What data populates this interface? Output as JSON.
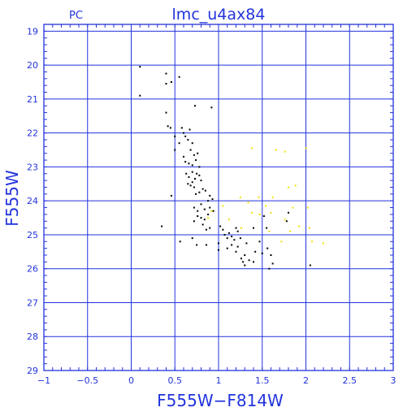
{
  "chart_data": {
    "type": "scatter",
    "corner_label": "PC",
    "title": "lmc_u4ax84",
    "xlabel": "F555W−F814W",
    "ylabel": "F555W",
    "xlim": [
      -1,
      3
    ],
    "ylim": [
      29,
      18.8
    ],
    "y_inverted": true,
    "grid": true,
    "x_ticks": [
      -1,
      -0.5,
      0,
      0.5,
      1,
      1.5,
      2,
      2.5,
      3
    ],
    "x_tick_labels": [
      "−1",
      "−0.5",
      "0",
      "0.5",
      "1",
      "1.5",
      "2",
      "2.5",
      "3"
    ],
    "y_ticks": [
      19,
      20,
      21,
      22,
      23,
      24,
      25,
      26,
      27,
      28,
      29
    ],
    "y_tick_labels": [
      "19",
      "20",
      "21",
      "22",
      "23",
      "24",
      "25",
      "26",
      "27",
      "28",
      "29"
    ],
    "axis_color": "#2233dd",
    "series": [
      {
        "color": "#000000",
        "points": [
          [
            0.1,
            20.05
          ],
          [
            0.1,
            20.9
          ],
          [
            0.4,
            20.25
          ],
          [
            0.4,
            20.55
          ],
          [
            0.46,
            20.5
          ],
          [
            0.55,
            20.35
          ],
          [
            0.4,
            21.4
          ],
          [
            0.42,
            21.8
          ],
          [
            0.45,
            21.85
          ],
          [
            0.73,
            21.2
          ],
          [
            0.92,
            21.25
          ],
          [
            0.5,
            22.1
          ],
          [
            0.55,
            22.3
          ],
          [
            0.5,
            22.5
          ],
          [
            0.58,
            21.85
          ],
          [
            0.6,
            22.0
          ],
          [
            0.62,
            22.1
          ],
          [
            0.65,
            22.2
          ],
          [
            0.67,
            21.9
          ],
          [
            0.7,
            22.3
          ],
          [
            0.68,
            22.5
          ],
          [
            0.72,
            22.65
          ],
          [
            0.6,
            22.7
          ],
          [
            0.62,
            22.85
          ],
          [
            0.66,
            22.9
          ],
          [
            0.7,
            22.95
          ],
          [
            0.74,
            22.8
          ],
          [
            0.76,
            22.6
          ],
          [
            0.78,
            23.0
          ],
          [
            0.63,
            23.2
          ],
          [
            0.66,
            23.3
          ],
          [
            0.7,
            23.15
          ],
          [
            0.73,
            23.35
          ],
          [
            0.75,
            23.2
          ],
          [
            0.78,
            23.25
          ],
          [
            0.65,
            23.5
          ],
          [
            0.68,
            23.55
          ],
          [
            0.7,
            23.45
          ],
          [
            0.72,
            23.6
          ],
          [
            0.8,
            23.4
          ],
          [
            0.82,
            23.65
          ],
          [
            0.74,
            23.8
          ],
          [
            0.78,
            23.75
          ],
          [
            0.85,
            23.7
          ],
          [
            0.9,
            23.85
          ],
          [
            0.88,
            24.0
          ],
          [
            0.93,
            23.95
          ],
          [
            0.46,
            23.85
          ],
          [
            0.72,
            24.2
          ],
          [
            0.76,
            24.3
          ],
          [
            0.8,
            24.1
          ],
          [
            0.84,
            24.25
          ],
          [
            0.9,
            24.2
          ],
          [
            0.94,
            24.3
          ],
          [
            0.76,
            24.45
          ],
          [
            0.8,
            24.5
          ],
          [
            0.84,
            24.55
          ],
          [
            0.88,
            24.4
          ],
          [
            0.72,
            24.6
          ],
          [
            0.35,
            24.75
          ],
          [
            0.82,
            24.7
          ],
          [
            0.86,
            24.85
          ],
          [
            0.9,
            24.8
          ],
          [
            0.56,
            25.2
          ],
          [
            0.7,
            25.1
          ],
          [
            0.75,
            25.3
          ],
          [
            0.86,
            25.3
          ],
          [
            1.0,
            25.25
          ],
          [
            1.0,
            25.45
          ],
          [
            1.02,
            24.75
          ],
          [
            1.05,
            24.85
          ],
          [
            1.07,
            25.0
          ],
          [
            1.1,
            25.1
          ],
          [
            1.12,
            24.95
          ],
          [
            1.15,
            25.05
          ],
          [
            1.18,
            25.15
          ],
          [
            1.2,
            24.8
          ],
          [
            1.22,
            24.9
          ],
          [
            1.25,
            25.1
          ],
          [
            1.15,
            25.3
          ],
          [
            1.2,
            25.5
          ],
          [
            1.22,
            25.35
          ],
          [
            1.1,
            25.4
          ],
          [
            1.26,
            25.7
          ],
          [
            1.28,
            25.8
          ],
          [
            1.3,
            25.6
          ],
          [
            1.32,
            25.25
          ],
          [
            1.35,
            25.75
          ],
          [
            1.3,
            25.9
          ],
          [
            1.4,
            25.8
          ],
          [
            1.42,
            25.5
          ],
          [
            1.4,
            24.8
          ],
          [
            1.47,
            25.2
          ],
          [
            1.5,
            25.55
          ],
          [
            1.52,
            24.45
          ],
          [
            1.55,
            24.8
          ],
          [
            1.56,
            25.4
          ],
          [
            1.6,
            25.6
          ],
          [
            1.58,
            26.0
          ],
          [
            1.62,
            25.85
          ],
          [
            1.78,
            24.6
          ],
          [
            1.8,
            24.35
          ],
          [
            2.05,
            25.9
          ]
        ]
      },
      {
        "color": "#f0e000",
        "points": [
          [
            0.88,
            24.5
          ],
          [
            0.92,
            24.3
          ],
          [
            1.05,
            24.15
          ],
          [
            1.12,
            24.55
          ],
          [
            1.25,
            23.9
          ],
          [
            1.26,
            24.8
          ],
          [
            1.34,
            24.05
          ],
          [
            1.38,
            24.35
          ],
          [
            1.38,
            22.45
          ],
          [
            1.46,
            23.9
          ],
          [
            1.47,
            24.4
          ],
          [
            1.54,
            24.15
          ],
          [
            1.58,
            24.9
          ],
          [
            1.6,
            24.35
          ],
          [
            1.62,
            23.9
          ],
          [
            1.66,
            22.5
          ],
          [
            1.72,
            25.2
          ],
          [
            1.76,
            24.55
          ],
          [
            1.76,
            22.55
          ],
          [
            1.8,
            23.6
          ],
          [
            1.82,
            24.9
          ],
          [
            1.85,
            24.2
          ],
          [
            1.88,
            23.55
          ],
          [
            1.92,
            24.75
          ],
          [
            2.0,
            22.45
          ],
          [
            2.02,
            24.2
          ],
          [
            2.04,
            24.8
          ],
          [
            2.07,
            25.2
          ],
          [
            2.2,
            25.25
          ]
        ]
      }
    ]
  }
}
